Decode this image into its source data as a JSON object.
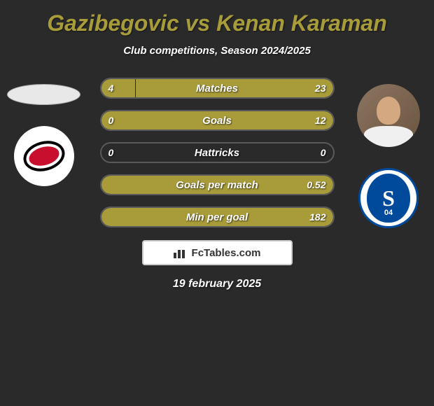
{
  "title": "Gazibegovic vs Kenan Karaman",
  "subtitle": "Club competitions, Season 2024/2025",
  "date": "19 february 2025",
  "badge_text": "FcTables.com",
  "colors": {
    "bar_fill": "#a89c3a",
    "title": "#a89c3a",
    "background": "#2a2a2a",
    "border": "#5a5a5a",
    "text": "#ffffff"
  },
  "player_left": {
    "name": "Gazibegovic",
    "club_primary": "#c8102e",
    "club_secondary": "#000000"
  },
  "player_right": {
    "name": "Kenan Karaman",
    "club_primary": "#004a9c",
    "club_name": "Schalke 04"
  },
  "stats": [
    {
      "label": "Matches",
      "left_val": "4",
      "right_val": "23",
      "left_pct": 14.8,
      "right_pct": 85.2
    },
    {
      "label": "Goals",
      "left_val": "0",
      "right_val": "12",
      "left_pct": 0,
      "right_pct": 100
    },
    {
      "label": "Hattricks",
      "left_val": "0",
      "right_val": "0",
      "left_pct": 0,
      "right_pct": 0
    },
    {
      "label": "Goals per match",
      "left_val": "",
      "right_val": "0.52",
      "left_pct": 0,
      "right_pct": 100
    },
    {
      "label": "Min per goal",
      "left_val": "",
      "right_val": "182",
      "left_pct": 0,
      "right_pct": 100
    }
  ]
}
